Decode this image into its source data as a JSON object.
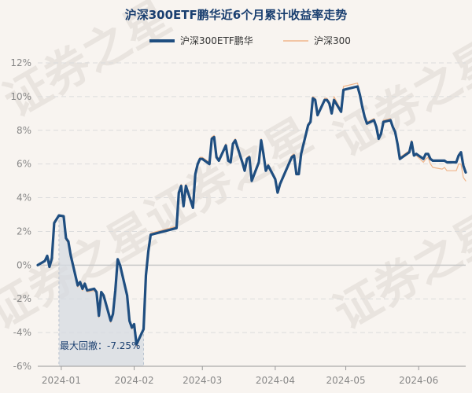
{
  "chart_data": {
    "type": "line",
    "title": "沪深300ETF鹏华近6个月累计收益率走势",
    "watermark": "证券之星",
    "ylim": [
      -6,
      12
    ],
    "yticks": [
      -6,
      -4,
      -2,
      0,
      2,
      4,
      6,
      8,
      10,
      12
    ],
    "ytick_labels": [
      "-6%",
      "-4%",
      "-2%",
      "0%",
      "2%",
      "4%",
      "6%",
      "8%",
      "10%",
      "12%"
    ],
    "xlim": [
      "2023-12-22",
      "2024-06-21"
    ],
    "xticks": [
      "2024-01-01",
      "2024-02-01",
      "2024-03-01",
      "2024-04-01",
      "2024-05-01",
      "2024-06-01"
    ],
    "xtick_labels": [
      "2024-01",
      "2024-02",
      "2024-03",
      "2024-04",
      "2024-05",
      "2024-06"
    ],
    "grid": true,
    "legend_position": "top",
    "drawdown": {
      "label": "最大回撤：-7.25%",
      "start": "2023-12-31",
      "end": "2024-02-05",
      "color": "#d5dbe2"
    },
    "series": [
      {
        "name": "沪深300ETF鹏华",
        "color": "#1f4e80",
        "points": [
          [
            "2023-12-22",
            0.0
          ],
          [
            "2023-12-25",
            0.25
          ],
          [
            "2023-12-26",
            0.55
          ],
          [
            "2023-12-27",
            -0.1
          ],
          [
            "2023-12-28",
            0.4
          ],
          [
            "2023-12-29",
            2.5
          ],
          [
            "2023-12-31",
            2.95
          ],
          [
            "2024-01-02",
            2.9
          ],
          [
            "2024-01-03",
            1.6
          ],
          [
            "2024-01-04",
            1.4
          ],
          [
            "2024-01-05",
            0.6
          ],
          [
            "2024-01-08",
            -1.2
          ],
          [
            "2024-01-09",
            -1.0
          ],
          [
            "2024-01-10",
            -1.4
          ],
          [
            "2024-01-11",
            -1.1
          ],
          [
            "2024-01-12",
            -1.5
          ],
          [
            "2024-01-15",
            -1.4
          ],
          [
            "2024-01-16",
            -1.6
          ],
          [
            "2024-01-17",
            -3.0
          ],
          [
            "2024-01-18",
            -1.6
          ],
          [
            "2024-01-19",
            -1.8
          ],
          [
            "2024-01-22",
            -3.3
          ],
          [
            "2024-01-23",
            -2.9
          ],
          [
            "2024-01-24",
            -1.5
          ],
          [
            "2024-01-25",
            0.35
          ],
          [
            "2024-01-26",
            0.0
          ],
          [
            "2024-01-29",
            -1.8
          ],
          [
            "2024-01-30",
            -3.3
          ],
          [
            "2024-01-31",
            -3.7
          ],
          [
            "2024-02-01",
            -3.5
          ],
          [
            "2024-02-02",
            -4.7
          ],
          [
            "2024-02-05",
            -3.8
          ],
          [
            "2024-02-06",
            -0.6
          ],
          [
            "2024-02-07",
            0.8
          ],
          [
            "2024-02-08",
            1.8
          ],
          [
            "2024-02-19",
            2.2
          ],
          [
            "2024-02-20",
            4.3
          ],
          [
            "2024-02-21",
            4.7
          ],
          [
            "2024-02-22",
            3.5
          ],
          [
            "2024-02-23",
            4.7
          ],
          [
            "2024-02-26",
            3.4
          ],
          [
            "2024-02-27",
            5.4
          ],
          [
            "2024-02-28",
            6.0
          ],
          [
            "2024-02-29",
            6.3
          ],
          [
            "2024-03-01",
            6.3
          ],
          [
            "2024-03-04",
            6.0
          ],
          [
            "2024-03-05",
            7.5
          ],
          [
            "2024-03-06",
            7.6
          ],
          [
            "2024-03-07",
            6.4
          ],
          [
            "2024-03-08",
            6.2
          ],
          [
            "2024-03-11",
            7.1
          ],
          [
            "2024-03-12",
            6.2
          ],
          [
            "2024-03-13",
            6.1
          ],
          [
            "2024-03-14",
            7.2
          ],
          [
            "2024-03-15",
            7.4
          ],
          [
            "2024-03-18",
            6.1
          ],
          [
            "2024-03-19",
            5.6
          ],
          [
            "2024-03-20",
            6.3
          ],
          [
            "2024-03-21",
            6.4
          ],
          [
            "2024-03-22",
            5.0
          ],
          [
            "2024-03-25",
            6.1
          ],
          [
            "2024-03-26",
            7.4
          ],
          [
            "2024-03-27",
            6.6
          ],
          [
            "2024-03-28",
            5.6
          ],
          [
            "2024-03-29",
            5.9
          ],
          [
            "2024-04-01",
            5.1
          ],
          [
            "2024-04-02",
            4.3
          ],
          [
            "2024-04-03",
            4.8
          ],
          [
            "2024-04-08",
            6.4
          ],
          [
            "2024-04-09",
            6.5
          ],
          [
            "2024-04-10",
            5.4
          ],
          [
            "2024-04-11",
            5.4
          ],
          [
            "2024-04-12",
            6.6
          ],
          [
            "2024-04-15",
            8.3
          ],
          [
            "2024-04-16",
            8.5
          ],
          [
            "2024-04-17",
            9.9
          ],
          [
            "2024-04-18",
            9.8
          ],
          [
            "2024-04-19",
            8.9
          ],
          [
            "2024-04-22",
            9.8
          ],
          [
            "2024-04-23",
            9.8
          ],
          [
            "2024-04-24",
            9.6
          ],
          [
            "2024-04-25",
            9.0
          ],
          [
            "2024-04-26",
            9.8
          ],
          [
            "2024-04-29",
            9.1
          ],
          [
            "2024-04-30",
            10.4
          ],
          [
            "2024-05-06",
            10.6
          ],
          [
            "2024-05-07",
            10.1
          ],
          [
            "2024-05-08",
            9.4
          ],
          [
            "2024-05-09",
            8.8
          ],
          [
            "2024-05-10",
            8.4
          ],
          [
            "2024-05-13",
            8.6
          ],
          [
            "2024-05-14",
            8.2
          ],
          [
            "2024-05-15",
            7.5
          ],
          [
            "2024-05-16",
            7.8
          ],
          [
            "2024-05-17",
            8.5
          ],
          [
            "2024-05-20",
            8.6
          ],
          [
            "2024-05-21",
            8.2
          ],
          [
            "2024-05-22",
            7.9
          ],
          [
            "2024-05-23",
            7.2
          ],
          [
            "2024-05-24",
            6.3
          ],
          [
            "2024-05-27",
            6.6
          ],
          [
            "2024-05-28",
            6.7
          ],
          [
            "2024-05-29",
            7.3
          ],
          [
            "2024-05-30",
            6.5
          ],
          [
            "2024-05-31",
            6.6
          ],
          [
            "2024-06-03",
            6.3
          ],
          [
            "2024-06-04",
            6.6
          ],
          [
            "2024-06-05",
            6.6
          ],
          [
            "2024-06-06",
            6.3
          ],
          [
            "2024-06-07",
            6.2
          ],
          [
            "2024-06-11",
            6.2
          ],
          [
            "2024-06-12",
            6.2
          ],
          [
            "2024-06-13",
            6.1
          ],
          [
            "2024-06-14",
            6.1
          ],
          [
            "2024-06-17",
            6.1
          ],
          [
            "2024-06-18",
            6.5
          ],
          [
            "2024-06-19",
            6.7
          ],
          [
            "2024-06-20",
            5.9
          ],
          [
            "2024-06-21",
            5.5
          ]
        ]
      },
      {
        "name": "沪深300",
        "color": "#f0b58a",
        "points": [
          [
            "2023-12-22",
            0.0
          ],
          [
            "2023-12-25",
            0.2
          ],
          [
            "2023-12-26",
            0.5
          ],
          [
            "2023-12-27",
            -0.15
          ],
          [
            "2023-12-28",
            0.35
          ],
          [
            "2023-12-29",
            2.6
          ],
          [
            "2023-12-31",
            3.0
          ],
          [
            "2024-01-02",
            2.8
          ],
          [
            "2024-01-03",
            1.5
          ],
          [
            "2024-01-04",
            1.3
          ],
          [
            "2024-01-05",
            0.5
          ],
          [
            "2024-01-08",
            -1.3
          ],
          [
            "2024-01-09",
            -1.1
          ],
          [
            "2024-01-10",
            -1.5
          ],
          [
            "2024-01-11",
            -1.2
          ],
          [
            "2024-01-12",
            -1.6
          ],
          [
            "2024-01-15",
            -1.5
          ],
          [
            "2024-01-16",
            -1.7
          ],
          [
            "2024-01-17",
            -3.1
          ],
          [
            "2024-01-18",
            -1.7
          ],
          [
            "2024-01-19",
            -1.9
          ],
          [
            "2024-01-22",
            -3.4
          ],
          [
            "2024-01-23",
            -3.0
          ],
          [
            "2024-01-24",
            -1.6
          ],
          [
            "2024-01-25",
            0.3
          ],
          [
            "2024-01-26",
            -0.1
          ],
          [
            "2024-01-29",
            -1.9
          ],
          [
            "2024-01-30",
            -3.4
          ],
          [
            "2024-01-31",
            -3.8
          ],
          [
            "2024-02-01",
            -3.6
          ],
          [
            "2024-02-02",
            -4.8
          ],
          [
            "2024-02-05",
            -3.9
          ],
          [
            "2024-02-06",
            -0.5
          ],
          [
            "2024-02-07",
            0.9
          ],
          [
            "2024-02-08",
            1.9
          ],
          [
            "2024-02-19",
            2.3
          ],
          [
            "2024-02-20",
            4.4
          ],
          [
            "2024-02-21",
            4.8
          ],
          [
            "2024-02-22",
            3.6
          ],
          [
            "2024-02-23",
            4.8
          ],
          [
            "2024-02-26",
            3.6
          ],
          [
            "2024-02-27",
            5.6
          ],
          [
            "2024-02-28",
            6.1
          ],
          [
            "2024-02-29",
            6.4
          ],
          [
            "2024-03-01",
            6.4
          ],
          [
            "2024-03-04",
            6.1
          ],
          [
            "2024-03-05",
            7.6
          ],
          [
            "2024-03-06",
            7.7
          ],
          [
            "2024-03-07",
            6.5
          ],
          [
            "2024-03-08",
            6.3
          ],
          [
            "2024-03-11",
            7.2
          ],
          [
            "2024-03-12",
            6.3
          ],
          [
            "2024-03-13",
            6.2
          ],
          [
            "2024-03-14",
            7.3
          ],
          [
            "2024-03-15",
            7.5
          ],
          [
            "2024-03-18",
            6.2
          ],
          [
            "2024-03-19",
            5.7
          ],
          [
            "2024-03-20",
            6.4
          ],
          [
            "2024-03-21",
            6.5
          ],
          [
            "2024-03-22",
            5.1
          ],
          [
            "2024-03-25",
            6.2
          ],
          [
            "2024-03-26",
            7.5
          ],
          [
            "2024-03-27",
            6.7
          ],
          [
            "2024-03-28",
            5.7
          ],
          [
            "2024-03-29",
            6.0
          ],
          [
            "2024-04-01",
            5.2
          ],
          [
            "2024-04-02",
            4.4
          ],
          [
            "2024-04-03",
            4.9
          ],
          [
            "2024-04-08",
            6.5
          ],
          [
            "2024-04-09",
            6.6
          ],
          [
            "2024-04-10",
            5.5
          ],
          [
            "2024-04-11",
            5.5
          ],
          [
            "2024-04-12",
            6.7
          ],
          [
            "2024-04-15",
            8.4
          ],
          [
            "2024-04-16",
            8.6
          ],
          [
            "2024-04-17",
            10.0
          ],
          [
            "2024-04-18",
            9.9
          ],
          [
            "2024-04-19",
            9.0
          ],
          [
            "2024-04-22",
            9.9
          ],
          [
            "2024-04-23",
            9.9
          ],
          [
            "2024-04-24",
            9.7
          ],
          [
            "2024-04-25",
            9.1
          ],
          [
            "2024-04-26",
            10.0
          ],
          [
            "2024-04-29",
            9.2
          ],
          [
            "2024-04-30",
            10.6
          ],
          [
            "2024-05-06",
            10.8
          ],
          [
            "2024-05-07",
            10.2
          ],
          [
            "2024-05-08",
            9.5
          ],
          [
            "2024-05-09",
            8.9
          ],
          [
            "2024-05-10",
            8.5
          ],
          [
            "2024-05-13",
            8.7
          ],
          [
            "2024-05-14",
            8.3
          ],
          [
            "2024-05-15",
            7.6
          ],
          [
            "2024-05-16",
            7.9
          ],
          [
            "2024-05-17",
            8.6
          ],
          [
            "2024-05-20",
            8.7
          ],
          [
            "2024-05-21",
            8.3
          ],
          [
            "2024-05-22",
            8.0
          ],
          [
            "2024-05-23",
            7.3
          ],
          [
            "2024-05-24",
            6.4
          ],
          [
            "2024-05-27",
            6.7
          ],
          [
            "2024-05-28",
            6.8
          ],
          [
            "2024-05-29",
            7.4
          ],
          [
            "2024-05-30",
            6.6
          ],
          [
            "2024-05-31",
            6.5
          ],
          [
            "2024-06-03",
            6.1
          ],
          [
            "2024-06-04",
            6.3
          ],
          [
            "2024-06-05",
            6.4
          ],
          [
            "2024-06-06",
            6.0
          ],
          [
            "2024-06-07",
            5.8
          ],
          [
            "2024-06-11",
            5.7
          ],
          [
            "2024-06-12",
            5.8
          ],
          [
            "2024-06-13",
            5.6
          ],
          [
            "2024-06-14",
            5.6
          ],
          [
            "2024-06-17",
            5.6
          ],
          [
            "2024-06-18",
            6.0
          ],
          [
            "2024-06-19",
            6.0
          ],
          [
            "2024-06-20",
            5.2
          ],
          [
            "2024-06-21",
            5.0
          ]
        ]
      }
    ]
  }
}
